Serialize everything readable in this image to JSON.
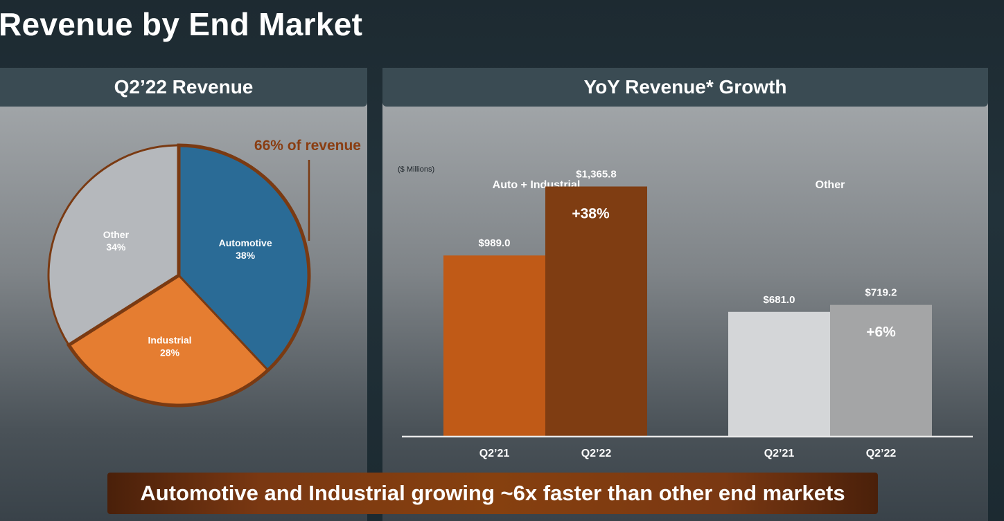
{
  "title": "Revenue by End Market",
  "left_panel": {
    "header": "Q2’22 Revenue",
    "callout": "66% of revenue"
  },
  "right_panel": {
    "header": "YoY Revenue* Growth",
    "units_note": "($ Millions)"
  },
  "banner": "Automotive and Industrial growing ~6x faster than other end markets",
  "colors": {
    "automotive": "#2a6b96",
    "industrial": "#e57d31",
    "other_slice": "#b5b8bc",
    "pie_outline": "#7a3a12",
    "bar_ai_q221": "#c05a17",
    "bar_ai_q222": "#7f3d12",
    "bar_other_q221": "#d4d6d8",
    "bar_other_q222": "#a4a5a6",
    "callout": "#8a3e12"
  },
  "chart_data": [
    {
      "type": "pie",
      "title": "Q2’22 Revenue",
      "slices": [
        {
          "label": "Automotive",
          "value": 38,
          "value_label": "38%"
        },
        {
          "label": "Industrial",
          "value": 28,
          "value_label": "28%"
        },
        {
          "label": "Other",
          "value": 34,
          "value_label": "34%"
        }
      ],
      "annotation": "66% of revenue"
    },
    {
      "type": "bar",
      "title": "YoY Revenue* Growth",
      "ylabel": "($ Millions)",
      "ylim": [
        0,
        1500
      ],
      "groups": [
        {
          "name": "Auto + Industrial",
          "bars": [
            {
              "category": "Q2’21",
              "value": 989.0,
              "label": "$989.0"
            },
            {
              "category": "Q2’22",
              "value": 1365.8,
              "label": "$1,365.8"
            }
          ],
          "growth": "+38%"
        },
        {
          "name": "Other",
          "bars": [
            {
              "category": "Q2’21",
              "value": 681.0,
              "label": "$681.0"
            },
            {
              "category": "Q2’22",
              "value": 719.2,
              "label": "$719.2"
            }
          ],
          "growth": "+6%"
        }
      ]
    }
  ]
}
